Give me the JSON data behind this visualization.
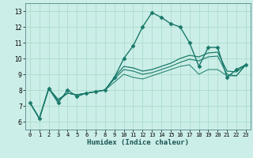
{
  "xlabel": "Humidex (Indice chaleur)",
  "bg_color": "#cceee8",
  "grid_color": "#aaddcc",
  "line_color": "#1a7a6a",
  "xlim": [
    -0.5,
    23.5
  ],
  "ylim": [
    5.5,
    13.5
  ],
  "xticks": [
    0,
    1,
    2,
    3,
    4,
    5,
    6,
    7,
    8,
    9,
    10,
    11,
    12,
    13,
    14,
    15,
    16,
    17,
    18,
    19,
    20,
    21,
    22,
    23
  ],
  "yticks": [
    6,
    7,
    8,
    9,
    10,
    11,
    12,
    13
  ],
  "lines": [
    {
      "x": [
        0,
        1,
        2,
        3,
        4,
        5,
        6,
        7,
        8,
        9,
        10,
        11,
        12,
        13,
        14,
        15,
        16,
        17,
        18,
        19,
        20,
        21,
        22,
        23
      ],
      "y": [
        7.2,
        6.2,
        8.1,
        7.2,
        8.0,
        7.6,
        7.8,
        7.9,
        8.0,
        8.8,
        10.0,
        10.8,
        12.0,
        12.9,
        12.6,
        12.2,
        12.0,
        11.0,
        9.5,
        10.7,
        10.7,
        8.8,
        9.3,
        9.6
      ],
      "marker": "D",
      "markersize": 2.5,
      "linewidth": 1.0
    },
    {
      "x": [
        0,
        1,
        2,
        3,
        4,
        5,
        6,
        7,
        8,
        9,
        10,
        11,
        12,
        13,
        14,
        15,
        16,
        17,
        18,
        19,
        20,
        21,
        22,
        23
      ],
      "y": [
        7.2,
        6.2,
        8.1,
        7.4,
        7.8,
        7.7,
        7.8,
        7.9,
        8.0,
        8.8,
        9.5,
        9.4,
        9.2,
        9.3,
        9.5,
        9.7,
        10.0,
        10.2,
        10.1,
        10.35,
        10.4,
        9.2,
        9.15,
        9.6
      ],
      "marker": null,
      "markersize": 0,
      "linewidth": 0.9
    },
    {
      "x": [
        0,
        1,
        2,
        3,
        4,
        5,
        6,
        7,
        8,
        9,
        10,
        11,
        12,
        13,
        14,
        15,
        16,
        17,
        18,
        19,
        20,
        21,
        22,
        23
      ],
      "y": [
        7.2,
        6.2,
        8.1,
        7.4,
        7.8,
        7.7,
        7.8,
        7.9,
        8.0,
        8.7,
        9.3,
        9.2,
        9.0,
        9.1,
        9.3,
        9.5,
        9.75,
        9.95,
        9.85,
        10.1,
        10.15,
        9.0,
        8.9,
        9.6
      ],
      "marker": null,
      "markersize": 0,
      "linewidth": 0.8
    },
    {
      "x": [
        0,
        1,
        2,
        3,
        4,
        5,
        6,
        7,
        8,
        9,
        10,
        11,
        12,
        13,
        14,
        15,
        16,
        17,
        18,
        19,
        20,
        21,
        22,
        23
      ],
      "y": [
        7.2,
        6.2,
        8.1,
        7.3,
        7.8,
        7.7,
        7.8,
        7.9,
        8.0,
        8.5,
        9.0,
        8.8,
        8.7,
        8.9,
        9.1,
        9.3,
        9.5,
        9.6,
        9.0,
        9.3,
        9.3,
        8.9,
        8.9,
        9.6
      ],
      "marker": null,
      "markersize": 0,
      "linewidth": 0.7
    }
  ]
}
